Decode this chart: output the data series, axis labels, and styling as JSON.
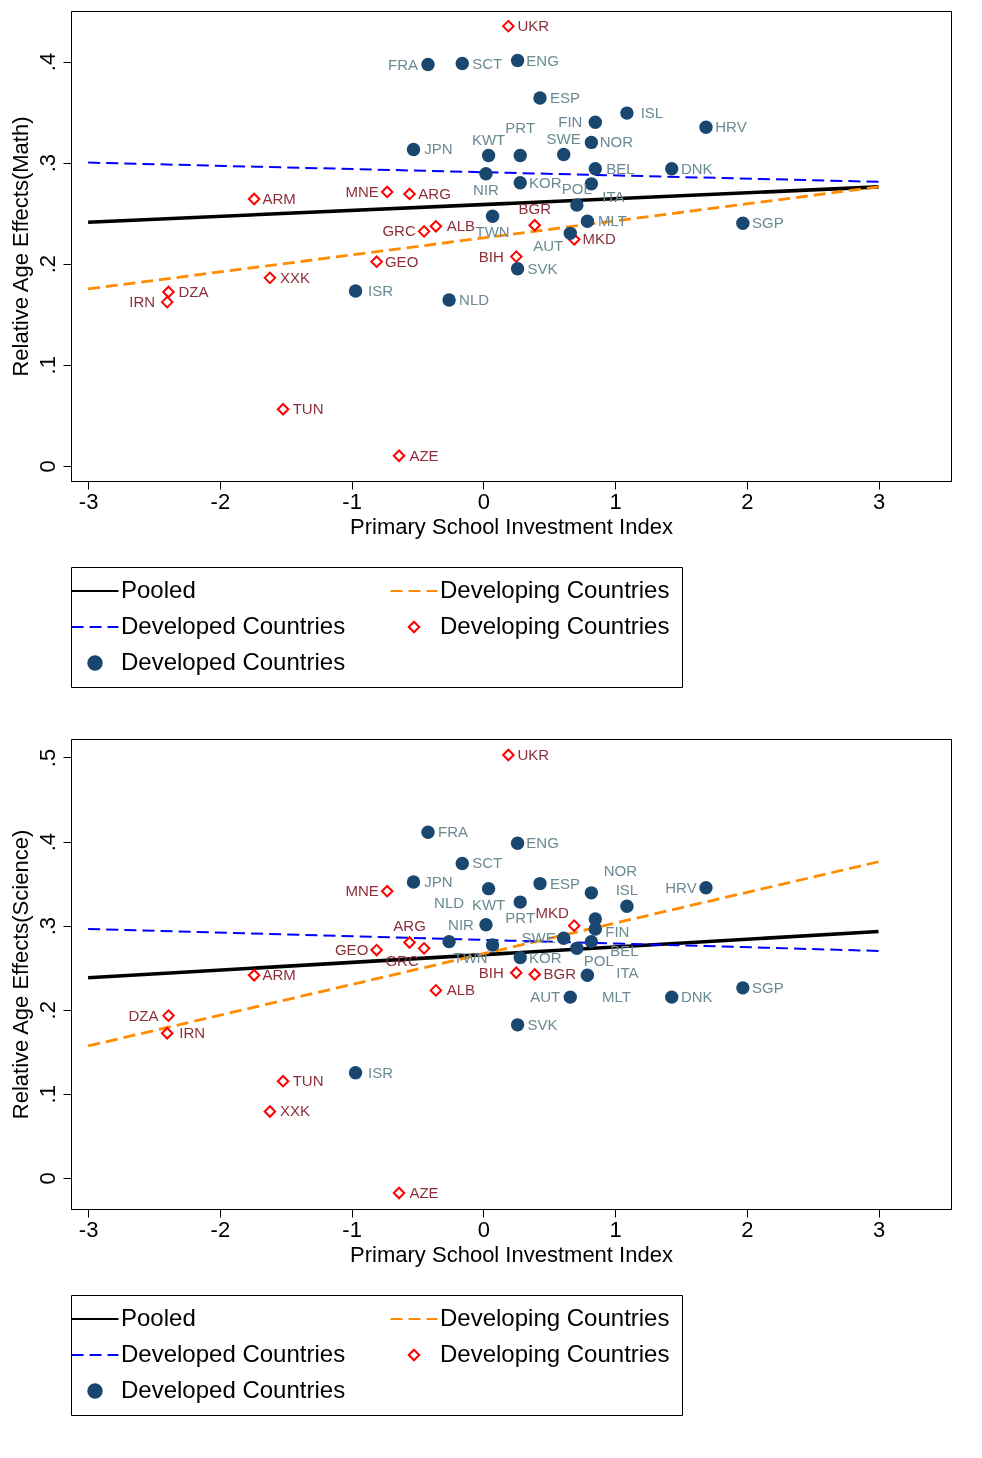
{
  "chart_data": [
    {
      "type": "scatter",
      "xlabel": "Primary School Investment Index",
      "ylabel": "Relative Age Effects(Math)",
      "xlim": [
        -3.13,
        3.55
      ],
      "ylim": [
        -0.015,
        0.45
      ],
      "xticks": [
        -3,
        -2,
        -1,
        0,
        1,
        2,
        3
      ],
      "yticks": [
        0,
        {
          "value": 0.1,
          "label": ".1"
        },
        {
          "value": 0.2,
          "label": ".2"
        },
        {
          "value": 0.3,
          "label": ".3"
        },
        {
          "value": 0.4,
          "label": ".4"
        }
      ],
      "legend": "bottom",
      "series": [
        {
          "name": "Pooled",
          "type": "line",
          "color": "#000000",
          "line_style": "solid",
          "x": [
            -3,
            3
          ],
          "values": [
            0.241,
            0.276
          ]
        },
        {
          "name": "Developing Countries",
          "type": "line",
          "color": "#ff8c00",
          "line_style": "dashed",
          "x": [
            -3,
            3
          ],
          "values": [
            0.175,
            0.276
          ]
        },
        {
          "name": "Developed Countries",
          "type": "line",
          "color": "#0000ff",
          "line_style": "dashed",
          "x": [
            -3,
            3
          ],
          "values": [
            0.3,
            0.281
          ]
        },
        {
          "name": "Developing Countries",
          "type": "scatter",
          "color": "#ff0000",
          "marker": "diamond",
          "x": [
            0.19,
            -1.74,
            -0.73,
            -0.56,
            -0.36,
            -0.45,
            0.39,
            0.69,
            0.25,
            -0.81,
            -1.62,
            -2.39,
            -2.4,
            -1.52,
            -0.64
          ],
          "values": [
            0.435,
            0.264,
            0.271,
            0.269,
            0.237,
            0.232,
            0.238,
            0.224,
            0.207,
            0.202,
            0.186,
            0.172,
            0.162,
            0.056,
            0.01
          ],
          "value_labels": [
            "UKR",
            "ARM",
            "MNE",
            "ARG",
            "ALB",
            "GRC",
            "BGR",
            "MKD",
            "BIH",
            "GEO",
            "XXK",
            "DZA",
            "IRN",
            "TUN",
            "AZE"
          ]
        },
        {
          "name": "Developed Countries",
          "type": "scatter",
          "color": "#1a476f",
          "marker": "circle",
          "x": [
            -0.42,
            -0.16,
            0.26,
            0.43,
            0.85,
            1.09,
            1.69,
            -0.53,
            0.82,
            0.04,
            0.28,
            0.61,
            0.85,
            1.43,
            0.02,
            0.28,
            0.82,
            0.71,
            0.07,
            0.79,
            0.66,
            1.97,
            0.26,
            -0.97,
            -0.26
          ],
          "values": [
            0.397,
            0.398,
            0.401,
            0.364,
            0.34,
            0.349,
            0.335,
            0.313,
            0.32,
            0.307,
            0.307,
            0.308,
            0.294,
            0.294,
            0.289,
            0.28,
            0.279,
            0.258,
            0.247,
            0.242,
            0.23,
            0.24,
            0.195,
            0.173,
            0.164
          ],
          "value_labels": [
            "FRA",
            "SCT",
            "ENG",
            "ESP",
            "FIN",
            "ISL",
            "HRV",
            "JPN",
            "NOR",
            "KWT",
            "PRT",
            "SWE",
            "BEL",
            "DNK",
            "NIR",
            "KOR",
            "ITA",
            "POL",
            "TWN",
            "MLT",
            "AUT",
            "SGP",
            "SVK",
            "ISR",
            "NLD"
          ]
        }
      ]
    },
    {
      "type": "scatter",
      "xlabel": "Primary School Investment Index",
      "ylabel": "Relative Age Effects(Science)",
      "xlim": [
        -3.13,
        3.55
      ],
      "ylim": [
        -0.037,
        0.522
      ],
      "xticks": [
        -3,
        -2,
        -1,
        0,
        1,
        2,
        3
      ],
      "yticks": [
        0,
        {
          "value": 0.1,
          "label": ".1"
        },
        {
          "value": 0.2,
          "label": ".2"
        },
        {
          "value": 0.3,
          "label": ".3"
        },
        {
          "value": 0.4,
          "label": ".4"
        },
        {
          "value": 0.5,
          "label": ".5"
        }
      ],
      "legend": "bottom",
      "series": [
        {
          "name": "Pooled",
          "type": "line",
          "color": "#000000",
          "line_style": "solid",
          "x": [
            -3,
            3
          ],
          "values": [
            0.238,
            0.293
          ]
        },
        {
          "name": "Developing Countries",
          "type": "line",
          "color": "#ff8c00",
          "line_style": "dashed",
          "x": [
            -3,
            3
          ],
          "values": [
            0.157,
            0.376
          ]
        },
        {
          "name": "Developed Countries",
          "type": "line",
          "color": "#0000ff",
          "line_style": "dashed",
          "x": [
            -3,
            3
          ],
          "values": [
            0.296,
            0.27
          ]
        },
        {
          "name": "Developing Countries",
          "type": "scatter",
          "color": "#ff0000",
          "marker": "diamond",
          "x": [
            0.19,
            -1.74,
            -0.73,
            -0.56,
            -0.36,
            -0.45,
            0.39,
            0.69,
            0.25,
            -0.81,
            -1.62,
            -2.39,
            -2.4,
            -1.52,
            -0.64
          ],
          "values": [
            0.503,
            0.241,
            0.341,
            0.28,
            0.223,
            0.273,
            0.242,
            0.3,
            0.244,
            0.271,
            0.079,
            0.193,
            0.172,
            0.115,
            -0.018
          ],
          "value_labels": [
            "UKR",
            "ARM",
            "MNE",
            "ARG",
            "ALB",
            "GRC",
            "BGR",
            "MKD",
            "BIH",
            "GEO",
            "XXK",
            "DZA",
            "IRN",
            "TUN",
            "AZE"
          ]
        },
        {
          "name": "Developed Countries",
          "type": "scatter",
          "color": "#1a476f",
          "marker": "circle",
          "x": [
            -0.42,
            -0.16,
            0.26,
            0.43,
            0.85,
            1.09,
            1.69,
            -0.53,
            0.82,
            0.04,
            0.28,
            0.61,
            0.85,
            1.43,
            0.02,
            0.28,
            0.82,
            0.71,
            0.07,
            0.79,
            0.66,
            1.97,
            0.26,
            -0.97,
            -0.26
          ],
          "values": [
            0.411,
            0.374,
            0.398,
            0.35,
            0.308,
            0.323,
            0.345,
            0.352,
            0.339,
            0.344,
            0.328,
            0.285,
            0.296,
            0.215,
            0.301,
            0.262,
            0.281,
            0.273,
            0.277,
            0.241,
            0.215,
            0.226,
            0.182,
            0.125,
            0.281
          ],
          "value_labels": [
            "FRA",
            "SCT",
            "ENG",
            "ESP",
            "FIN",
            "ISL",
            "HRV",
            "JPN",
            "NOR",
            "KWT",
            "PRT",
            "SWE",
            "BEL",
            "DNK",
            "NIR",
            "KOR",
            "ITA",
            "POL",
            "TWN",
            "MLT",
            "AUT",
            "SGP",
            "SVK",
            "ISR",
            "NLD"
          ]
        }
      ]
    }
  ]
}
